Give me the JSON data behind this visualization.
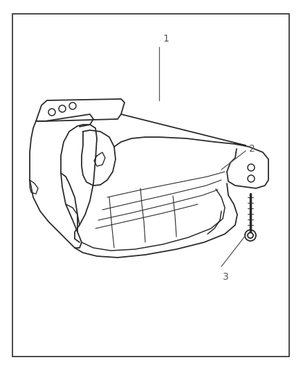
{
  "figure_width": 4.38,
  "figure_height": 5.33,
  "dpi": 100,
  "bg_color": "#ffffff",
  "border_color": "#2a2a2a",
  "border_linewidth": 1.2,
  "part_color": "#2a2a2a",
  "label_color": "#555555",
  "line_lw": 1.3
}
